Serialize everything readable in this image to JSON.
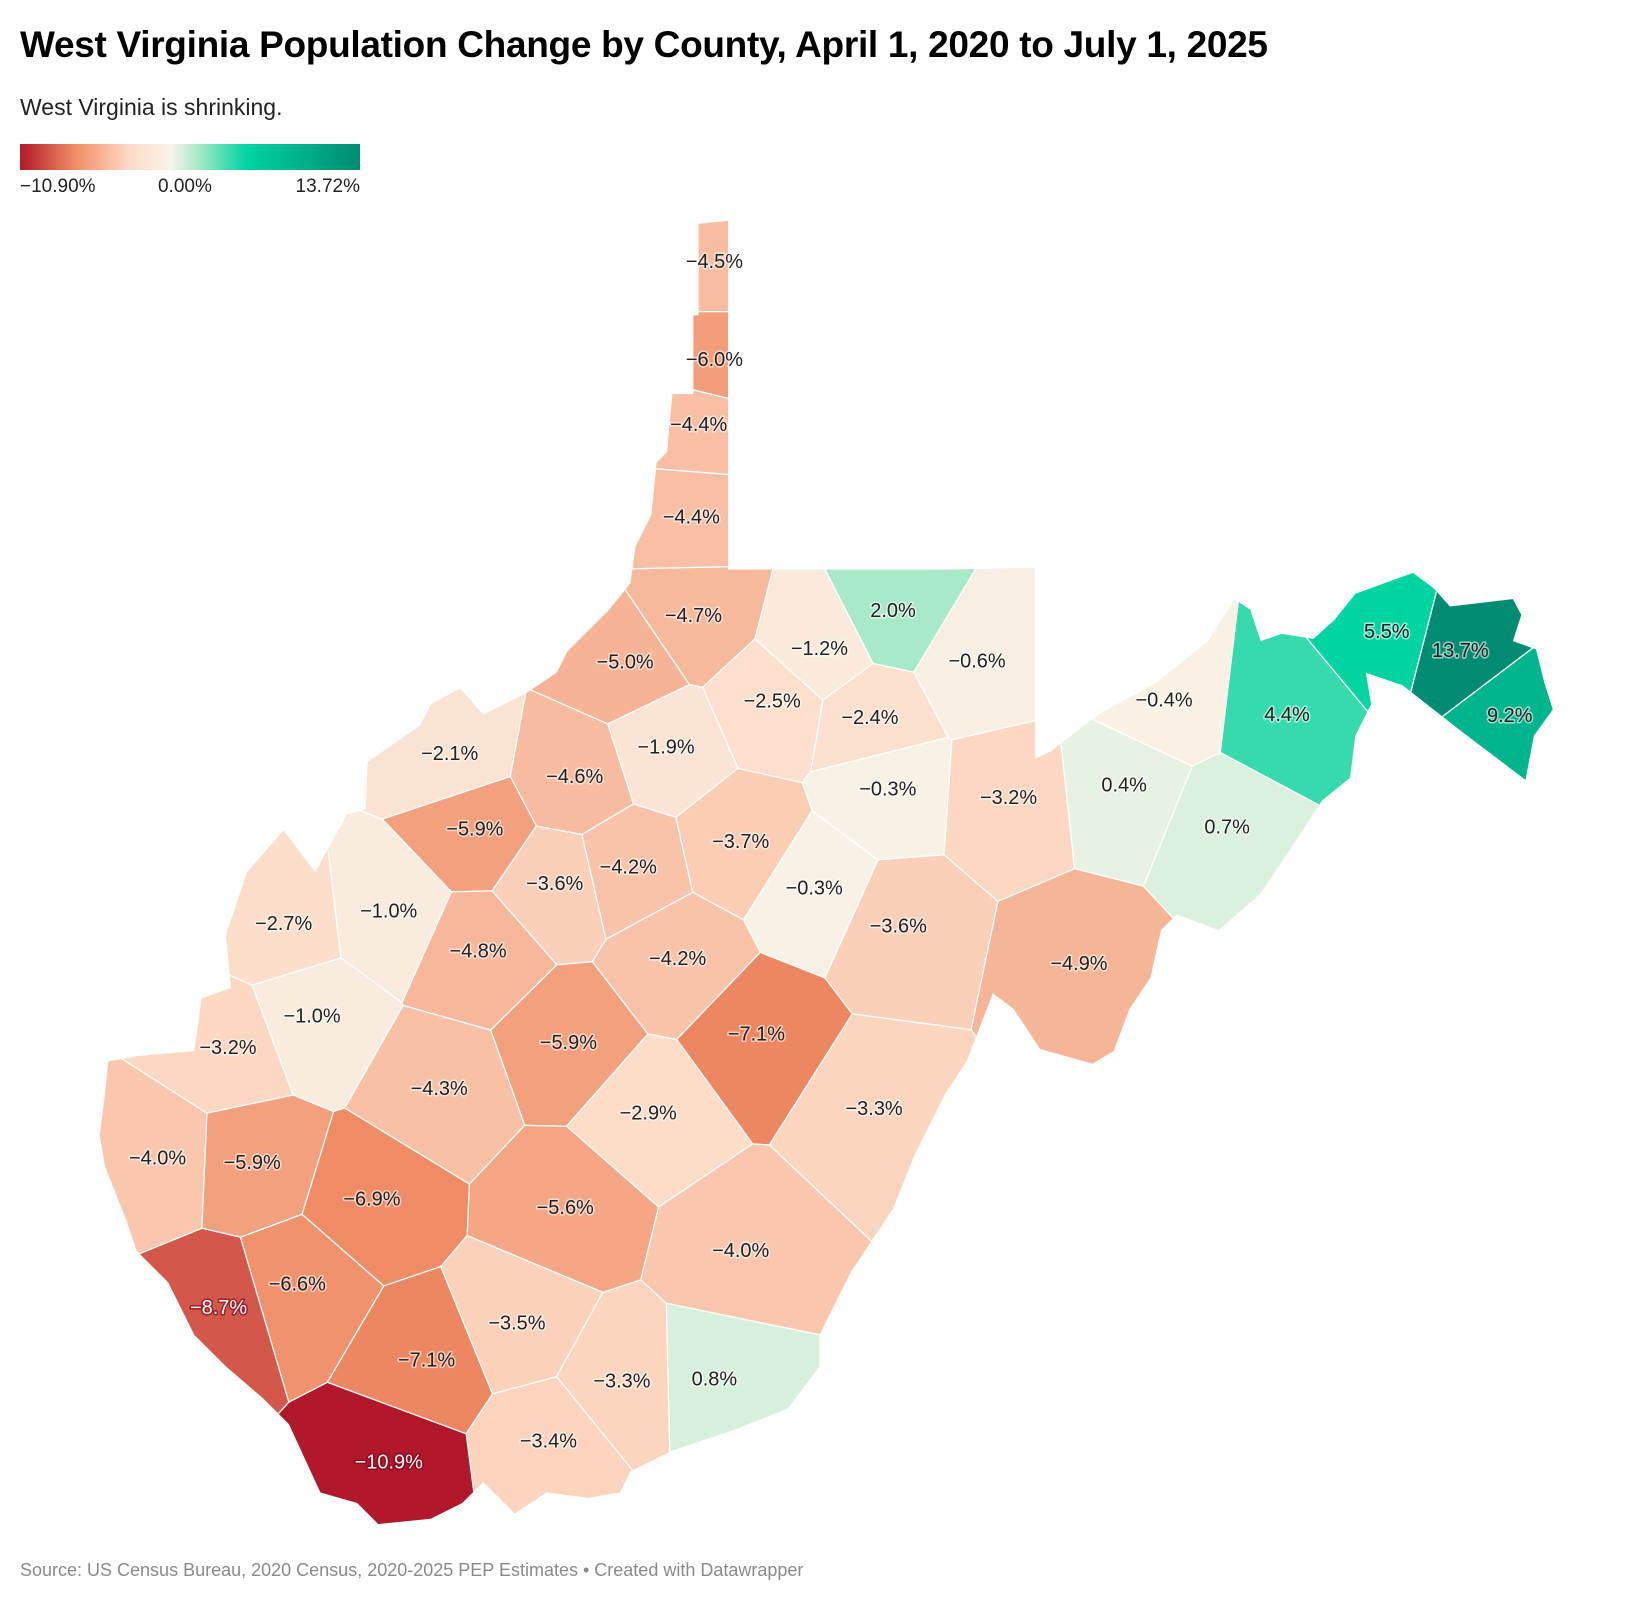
{
  "header": {
    "title": "West Virginia Population Change by County, April 1, 2020 to July 1, 2025",
    "subtitle": "West Virginia is shrinking."
  },
  "legend": {
    "min_label": "−10.90%",
    "mid_label": "0.00%",
    "max_label": "13.72%",
    "min": -10.9,
    "mid": 0,
    "max": 13.72,
    "colors": {
      "min": "#b2182b",
      "neg_mid": "#ef8a62",
      "neg_light": "#fddbc7",
      "zero": "#f7f4e9",
      "pos_light": "#a8e9c8",
      "pos_mid": "#00d4a0",
      "max": "#008c72"
    }
  },
  "footer": {
    "source": "Source: US Census Bureau, 2020 Census, 2020-2025 PEP Estimates • Created with Datawrapper"
  },
  "chart_data": {
    "type": "choropleth",
    "title": "West Virginia Population Change by County, April 1, 2020 to July 1, 2025",
    "counties": [
      {
        "label": "−4.5%",
        "value": -4.5
      },
      {
        "label": "−6.0%",
        "value": -6.0
      },
      {
        "label": "−4.4%",
        "value": -4.4
      },
      {
        "label": "−4.4%",
        "value": -4.4
      },
      {
        "label": "−4.7%",
        "value": -4.7
      },
      {
        "label": "2.0%",
        "value": 2.0
      },
      {
        "label": "−0.6%",
        "value": -0.6
      },
      {
        "label": "−1.2%",
        "value": -1.2
      },
      {
        "label": "−5.0%",
        "value": -5.0
      },
      {
        "label": "−2.4%",
        "value": -2.4
      },
      {
        "label": "−2.5%",
        "value": -2.5
      },
      {
        "label": "−1.9%",
        "value": -1.9
      },
      {
        "label": "−2.1%",
        "value": -2.1
      },
      {
        "label": "−4.6%",
        "value": -4.6
      },
      {
        "label": "−0.3%",
        "value": -0.3
      },
      {
        "label": "−3.2%",
        "value": -3.2
      },
      {
        "label": "0.4%",
        "value": 0.4
      },
      {
        "label": "0.7%",
        "value": 0.7
      },
      {
        "label": "−5.9%",
        "value": -5.9
      },
      {
        "label": "−3.6%",
        "value": -3.6
      },
      {
        "label": "−4.2%",
        "value": -4.2
      },
      {
        "label": "−3.7%",
        "value": -3.7
      },
      {
        "label": "−0.3%",
        "value": -0.3
      },
      {
        "label": "−1.0%",
        "value": -1.0
      },
      {
        "label": "−2.7%",
        "value": -2.7
      },
      {
        "label": "−3.6%",
        "value": -3.6
      },
      {
        "label": "−4.8%",
        "value": -4.8
      },
      {
        "label": "−4.2%",
        "value": -4.2
      },
      {
        "label": "−4.9%",
        "value": -4.9
      },
      {
        "label": "−1.0%",
        "value": -1.0
      },
      {
        "label": "−3.2%",
        "value": -3.2
      },
      {
        "label": "−5.9%",
        "value": -5.9
      },
      {
        "label": "−7.1%",
        "value": -7.1
      },
      {
        "label": "−4.3%",
        "value": -4.3
      },
      {
        "label": "−2.9%",
        "value": -2.9
      },
      {
        "label": "−3.3%",
        "value": -3.3
      },
      {
        "label": "−4.0%",
        "value": -4.0
      },
      {
        "label": "−5.9%",
        "value": -5.9
      },
      {
        "label": "−6.9%",
        "value": -6.9
      },
      {
        "label": "−5.6%",
        "value": -5.6
      },
      {
        "label": "−4.0%",
        "value": -4.0
      },
      {
        "label": "−6.6%",
        "value": -6.6
      },
      {
        "label": "−8.7%",
        "value": -8.7
      },
      {
        "label": "−3.5%",
        "value": -3.5
      },
      {
        "label": "−7.1%",
        "value": -7.1
      },
      {
        "label": "−3.3%",
        "value": -3.3
      },
      {
        "label": "0.8%",
        "value": 0.8
      },
      {
        "label": "−3.4%",
        "value": -3.4
      },
      {
        "label": "−10.9%",
        "value": -10.9
      },
      {
        "label": "−0.4%",
        "value": -0.4
      },
      {
        "label": "4.4%",
        "value": 4.4
      },
      {
        "label": "5.5%",
        "value": 5.5
      },
      {
        "label": "13.7%",
        "value": 13.7
      },
      {
        "label": "9.2%",
        "value": 9.2
      }
    ]
  }
}
